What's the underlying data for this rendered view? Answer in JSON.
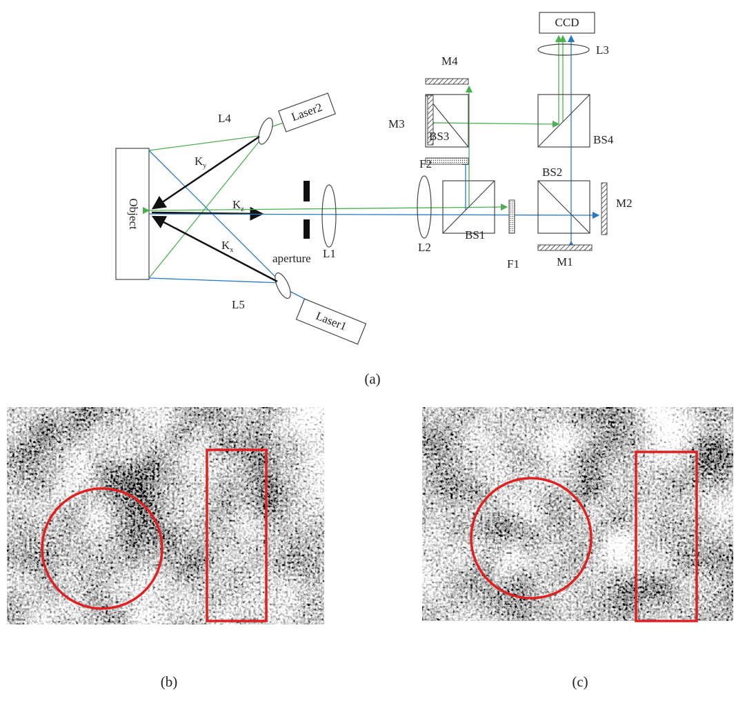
{
  "diagram": {
    "labels": {
      "ccd": "CCD",
      "m4": "M4",
      "l3": "L3",
      "laser2": "Laser2",
      "l4": "L4",
      "m3": "M3",
      "bs3": "BS3",
      "bs4": "BS4",
      "f2": "F2",
      "bs2": "BS2",
      "object": "Object",
      "m2": "M2",
      "aperture": "aperture",
      "l1": "L1",
      "l2": "L2",
      "bs1": "BS1",
      "f1": "F1",
      "m1": "M1",
      "l5": "L5",
      "laser1": "Laser1"
    },
    "vectors": {
      "ky": {
        "base": "K",
        "sub": "y"
      },
      "kz": {
        "base": "K",
        "sub": "z"
      },
      "kx": {
        "base": "K",
        "sub": "x"
      }
    }
  },
  "captions": {
    "a": "(a)",
    "b": "(b)",
    "c": "(c)"
  }
}
